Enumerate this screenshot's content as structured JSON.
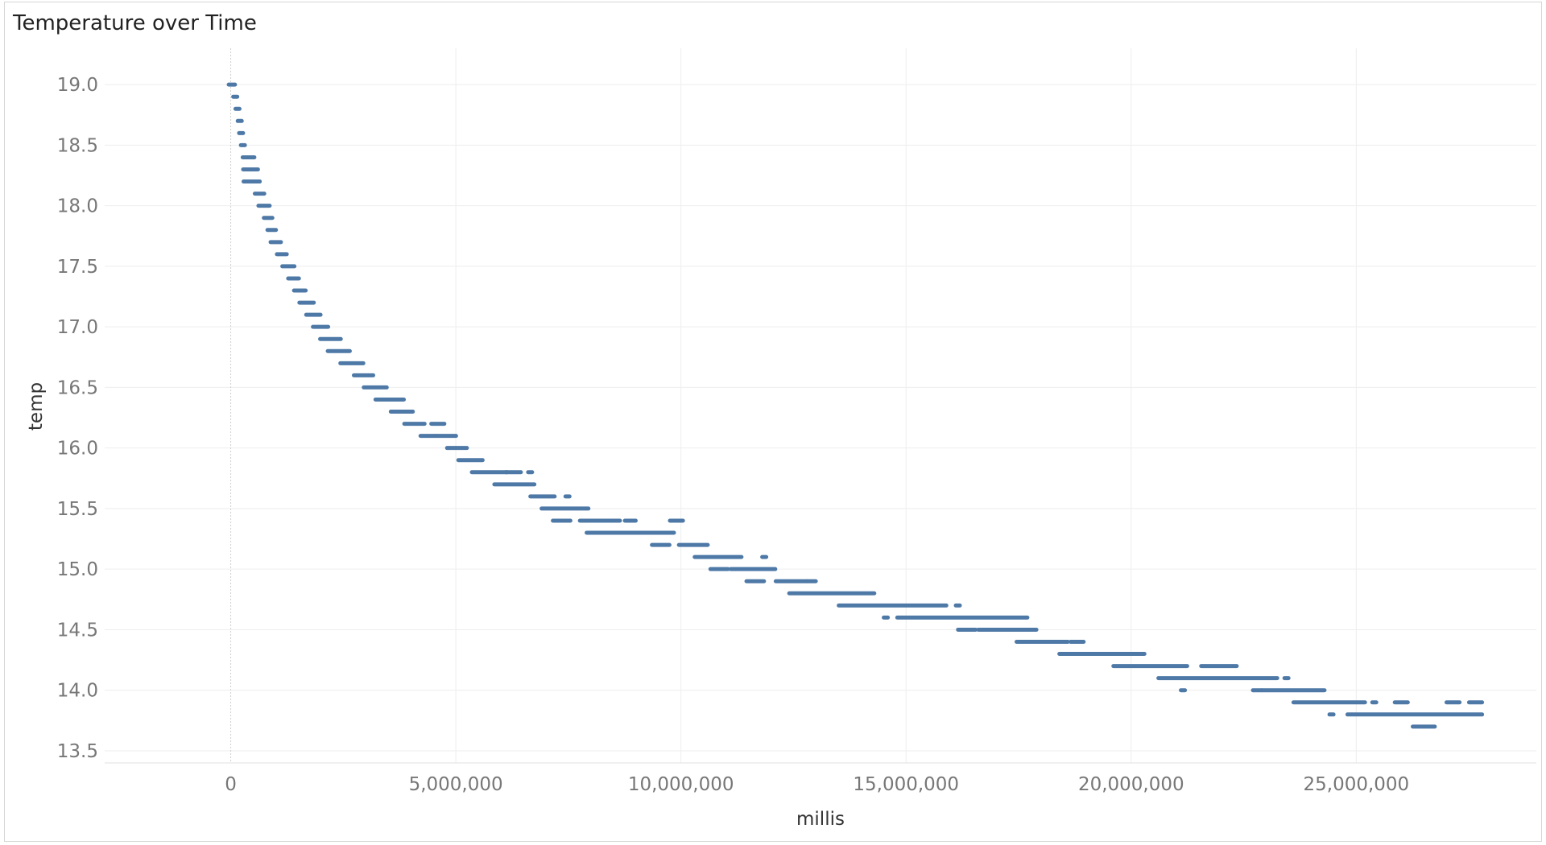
{
  "chart_data": {
    "type": "scatter",
    "title": "Temperature over Time",
    "xlabel": "millis",
    "ylabel": "temp",
    "xlim": [
      -2800000,
      29000000
    ],
    "ylim": [
      13.4,
      19.3
    ],
    "x_ticks": [
      0,
      5000000,
      10000000,
      15000000,
      20000000,
      25000000
    ],
    "x_tick_labels": [
      "0",
      "5,000,000",
      "10,000,000",
      "15,000,000",
      "20,000,000",
      "25,000,000"
    ],
    "y_ticks": [
      13.5,
      14.0,
      14.5,
      15.0,
      15.5,
      16.0,
      16.5,
      17.0,
      17.5,
      18.0,
      18.5,
      19.0
    ],
    "y_tick_labels": [
      "13.5",
      "14.0",
      "14.5",
      "15.0",
      "15.5",
      "16.0",
      "16.5",
      "17.0",
      "17.5",
      "18.0",
      "18.5",
      "19.0"
    ],
    "grid": true,
    "color": "#4e79a7",
    "series": [
      {
        "segments": [
          [
            0,
            50000,
            19.0
          ],
          [
            100000,
            100000,
            18.9
          ],
          [
            150000,
            150000,
            18.8
          ],
          [
            200000,
            200000,
            18.7
          ],
          [
            230000,
            230000,
            18.6
          ],
          [
            270000,
            270000,
            18.5
          ],
          [
            310000,
            340000,
            18.4
          ],
          [
            380000,
            480000,
            18.4
          ],
          [
            320000,
            560000,
            18.3
          ],
          [
            330000,
            400000,
            18.2
          ],
          [
            480000,
            600000,
            18.2
          ],
          [
            580000,
            700000,
            18.1
          ],
          [
            660000,
            820000,
            18.0
          ],
          [
            780000,
            880000,
            17.9
          ],
          [
            860000,
            960000,
            17.8
          ],
          [
            930000,
            1070000,
            17.7
          ],
          [
            1070000,
            1200000,
            17.6
          ],
          [
            1190000,
            1370000,
            17.5
          ],
          [
            1320000,
            1470000,
            17.4
          ],
          [
            1450000,
            1620000,
            17.3
          ],
          [
            1570000,
            1800000,
            17.2
          ],
          [
            1720000,
            1950000,
            17.1
          ],
          [
            1870000,
            2120000,
            17.0
          ],
          [
            2030000,
            2400000,
            16.9
          ],
          [
            2200000,
            2600000,
            16.8
          ],
          [
            2480000,
            2900000,
            16.7
          ],
          [
            2780000,
            3120000,
            16.6
          ],
          [
            3000000,
            3420000,
            16.5
          ],
          [
            3260000,
            3800000,
            16.4
          ],
          [
            3600000,
            4000000,
            16.3
          ],
          [
            3900000,
            4260000,
            16.2
          ],
          [
            4500000,
            4700000,
            16.2
          ],
          [
            4260000,
            4500000,
            16.1
          ],
          [
            4600000,
            4960000,
            16.1
          ],
          [
            4850000,
            5200000,
            16.0
          ],
          [
            5100000,
            5550000,
            15.9
          ],
          [
            5400000,
            6100000,
            15.8
          ],
          [
            6150000,
            6400000,
            15.8
          ],
          [
            6650000,
            6650000,
            15.8
          ],
          [
            5900000,
            6700000,
            15.7
          ],
          [
            6700000,
            7150000,
            15.6
          ],
          [
            7480000,
            7480000,
            15.6
          ],
          [
            6950000,
            7900000,
            15.5
          ],
          [
            7200000,
            7500000,
            15.4
          ],
          [
            7800000,
            8600000,
            15.4
          ],
          [
            8800000,
            8950000,
            15.4
          ],
          [
            9800000,
            10000000,
            15.4
          ],
          [
            7950000,
            9800000,
            15.3
          ],
          [
            9400000,
            9700000,
            15.2
          ],
          [
            10000000,
            10550000,
            15.2
          ],
          [
            10350000,
            11300000,
            15.1
          ],
          [
            11850000,
            11850000,
            15.1
          ],
          [
            10700000,
            11000000,
            15.0
          ],
          [
            11150000,
            12050000,
            15.0
          ],
          [
            11500000,
            11800000,
            14.9
          ],
          [
            12150000,
            12750000,
            14.9
          ],
          [
            12850000,
            12950000,
            14.9
          ],
          [
            12450000,
            14250000,
            14.8
          ],
          [
            13550000,
            15850000,
            14.7
          ],
          [
            16150000,
            16150000,
            14.7
          ],
          [
            14550000,
            14550000,
            14.6
          ],
          [
            14850000,
            17650000,
            14.6
          ],
          [
            16200000,
            16500000,
            14.5
          ],
          [
            16650000,
            17850000,
            14.5
          ],
          [
            17500000,
            18550000,
            14.4
          ],
          [
            18700000,
            18900000,
            14.4
          ],
          [
            18450000,
            20250000,
            14.3
          ],
          [
            19650000,
            21200000,
            14.2
          ],
          [
            21600000,
            22300000,
            14.2
          ],
          [
            20650000,
            23200000,
            14.1
          ],
          [
            23450000,
            23450000,
            14.1
          ],
          [
            21150000,
            21150000,
            14.0
          ],
          [
            22750000,
            22850000,
            14.0
          ],
          [
            22950000,
            24250000,
            14.0
          ],
          [
            23650000,
            25150000,
            13.9
          ],
          [
            25400000,
            25400000,
            13.9
          ],
          [
            25900000,
            26100000,
            13.9
          ],
          [
            27050000,
            27250000,
            13.9
          ],
          [
            27550000,
            27750000,
            13.9
          ],
          [
            24450000,
            24450000,
            13.8
          ],
          [
            24850000,
            27750000,
            13.8
          ],
          [
            26300000,
            26700000,
            13.7
          ]
        ]
      }
    ]
  }
}
